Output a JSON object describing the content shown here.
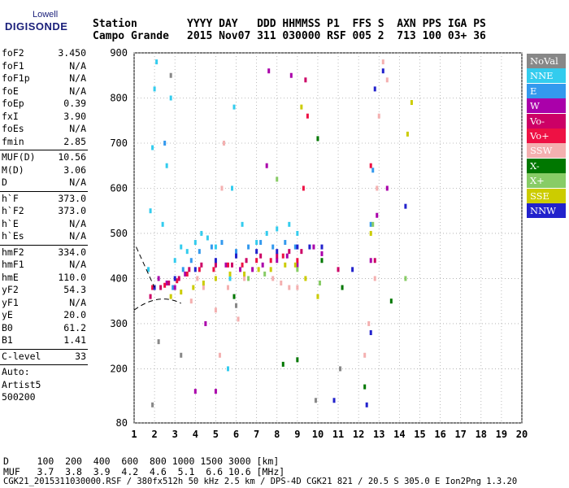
{
  "logo": {
    "line1": "Lowell",
    "line2": "DIGISONDE"
  },
  "header": {
    "station_label": "Station",
    "station_name": "Campo Grande",
    "columns_line": "YYYY DAY   DDD HHMMSS P1  FFS S  AXN PPS IGA PS",
    "values_line": "2015 Nov07 311 030000 RSF 005 2  713 100 03+ 36"
  },
  "params": [
    [
      {
        "k": "foF2",
        "v": "3.450"
      },
      {
        "k": "foF1",
        "v": "N/A"
      },
      {
        "k": "foF1p",
        "v": "N/A"
      },
      {
        "k": "foE",
        "v": "N/A"
      },
      {
        "k": "foEp",
        "v": "0.39"
      },
      {
        "k": "fxI",
        "v": "3.90"
      },
      {
        "k": "foEs",
        "v": "N/A"
      },
      {
        "k": "fmin",
        "v": "2.85"
      }
    ],
    [
      {
        "k": "MUF(D)",
        "v": "10.56"
      },
      {
        "k": "M(D)",
        "v": "3.06"
      },
      {
        "k": "D",
        "v": "N/A"
      }
    ],
    [
      {
        "k": "h`F",
        "v": "373.0"
      },
      {
        "k": "h`F2",
        "v": "373.0"
      },
      {
        "k": "h`E",
        "v": "N/A"
      },
      {
        "k": "h`Es",
        "v": "N/A"
      }
    ],
    [
      {
        "k": "hmF2",
        "v": "334.0"
      },
      {
        "k": "hmF1",
        "v": "N/A"
      },
      {
        "k": "hmE",
        "v": "110.0"
      },
      {
        "k": "yF2",
        "v": "54.3"
      },
      {
        "k": "yF1",
        "v": "N/A"
      },
      {
        "k": "yE",
        "v": "20.0"
      },
      {
        "k": "B0",
        "v": "61.2"
      },
      {
        "k": "B1",
        "v": "1.41"
      }
    ],
    [
      {
        "k": "C-level",
        "v": "33"
      }
    ]
  ],
  "autoscale": {
    "line1": "Auto:",
    "line2": "Artist5",
    "line3": "500200"
  },
  "legend": [
    {
      "label": "NoVal",
      "color": "#888888",
      "text": "#ffffff"
    },
    {
      "label": "NNE",
      "color": "#33ccee",
      "text": "#ffffff"
    },
    {
      "label": "E",
      "color": "#3399ee",
      "text": "#ffffff"
    },
    {
      "label": "W",
      "color": "#aa00aa",
      "text": "#ffffff"
    },
    {
      "label": "Vo-",
      "color": "#cc0066",
      "text": "#ffffff"
    },
    {
      "label": "Vo+",
      "color": "#ee1144",
      "text": "#ffffff"
    },
    {
      "label": "SSW",
      "color": "#f4b0b0",
      "text": "#ffffff"
    },
    {
      "label": "X-",
      "color": "#007700",
      "text": "#ffffff"
    },
    {
      "label": "X+",
      "color": "#88cc66",
      "text": "#ffffff"
    },
    {
      "label": "SSE",
      "color": "#cccc00",
      "text": "#ffffff"
    },
    {
      "label": "NNW",
      "color": "#2222cc",
      "text": "#ffffff"
    }
  ],
  "footer": {
    "d_line": "D     100  200  400  600  800 1000 1500 3000 [km]",
    "muf_line": "MUF   3.7  3.8  3.9  4.2  4.6  5.1  6.6 10.6 [MHz]",
    "file_line": "CGK21_2015311030000.RSF / 380fx512h 50 kHz 2.5 km / DPS-4D CGK21 821 / 20.5 S 305.0 E Ion2Png 1.3.20"
  },
  "chart_data": {
    "type": "scatter",
    "title": "",
    "xlabel": "",
    "ylabel": "",
    "xlim": [
      1,
      20
    ],
    "ylim": [
      80,
      900
    ],
    "xticks": [
      "1",
      "2",
      "3",
      "4",
      "5",
      "6",
      "7",
      "8",
      "9",
      "10",
      "11",
      "12",
      "13",
      "14",
      "15",
      "16",
      "17",
      "18",
      "19",
      "20"
    ],
    "yticks": [
      "80",
      "200",
      "300",
      "400",
      "500",
      "600",
      "700",
      "800",
      "900"
    ],
    "grid": true,
    "series": [
      {
        "name": "NoVal",
        "color": "#888888",
        "points": [
          [
            1.9,
            120
          ],
          [
            2.2,
            260
          ],
          [
            2.8,
            850
          ],
          [
            3.3,
            230
          ],
          [
            6.0,
            340
          ],
          [
            9.9,
            130
          ],
          [
            11.1,
            200
          ]
        ]
      },
      {
        "name": "NNE",
        "color": "#33ccee",
        "points": [
          [
            1.7,
            420
          ],
          [
            1.8,
            550
          ],
          [
            1.9,
            690
          ],
          [
            2.0,
            820
          ],
          [
            2.1,
            880
          ],
          [
            2.4,
            520
          ],
          [
            2.6,
            650
          ],
          [
            2.8,
            800
          ],
          [
            3.0,
            440
          ],
          [
            3.3,
            470
          ],
          [
            3.6,
            460
          ],
          [
            4.0,
            480
          ],
          [
            4.3,
            500
          ],
          [
            4.6,
            490
          ],
          [
            5.0,
            470
          ],
          [
            5.6,
            200
          ],
          [
            5.7,
            400
          ],
          [
            5.8,
            600
          ],
          [
            5.9,
            780
          ],
          [
            6.3,
            520
          ],
          [
            7.0,
            480
          ],
          [
            7.5,
            500
          ],
          [
            8.0,
            510
          ],
          [
            8.6,
            520
          ],
          [
            9.0,
            500
          ]
        ]
      },
      {
        "name": "E",
        "color": "#3399ee",
        "points": [
          [
            2.5,
            700
          ],
          [
            2.9,
            380
          ],
          [
            3.4,
            420
          ],
          [
            3.8,
            440
          ],
          [
            4.2,
            460
          ],
          [
            4.8,
            470
          ],
          [
            5.3,
            480
          ],
          [
            6.0,
            460
          ],
          [
            6.6,
            470
          ],
          [
            7.2,
            480
          ],
          [
            7.8,
            470
          ],
          [
            8.4,
            480
          ],
          [
            8.9,
            470
          ],
          [
            12.6,
            520
          ],
          [
            12.7,
            640
          ]
        ]
      },
      {
        "name": "W",
        "color": "#aa00aa",
        "points": [
          [
            2.2,
            400
          ],
          [
            2.6,
            390
          ],
          [
            3.0,
            380
          ],
          [
            3.5,
            410
          ],
          [
            4.0,
            150
          ],
          [
            4.5,
            300
          ],
          [
            5.0,
            150
          ],
          [
            5.5,
            430
          ],
          [
            6.2,
            420
          ],
          [
            6.8,
            420
          ],
          [
            7.3,
            430
          ],
          [
            7.5,
            650
          ],
          [
            7.6,
            860
          ],
          [
            8.0,
            440
          ],
          [
            8.5,
            450
          ],
          [
            8.7,
            850
          ],
          [
            9.0,
            430
          ],
          [
            9.8,
            470
          ],
          [
            10.2,
            455
          ],
          [
            12.6,
            440
          ],
          [
            12.9,
            540
          ],
          [
            13.4,
            600
          ]
        ]
      },
      {
        "name": "Vo-",
        "color": "#cc0066",
        "points": [
          [
            1.8,
            360
          ],
          [
            2.3,
            380
          ],
          [
            2.7,
            390
          ],
          [
            3.2,
            400
          ],
          [
            3.7,
            420
          ],
          [
            4.3,
            430
          ],
          [
            5.0,
            430
          ],
          [
            5.8,
            430
          ],
          [
            6.5,
            440
          ],
          [
            7.2,
            450
          ],
          [
            8.0,
            450
          ],
          [
            8.6,
            460
          ],
          [
            9.2,
            460
          ],
          [
            9.4,
            840
          ],
          [
            11.0,
            420
          ],
          [
            12.8,
            440
          ]
        ]
      },
      {
        "name": "Vo+",
        "color": "#ee1144",
        "points": [
          [
            1.9,
            380
          ],
          [
            2.5,
            385
          ],
          [
            3.1,
            395
          ],
          [
            3.6,
            410
          ],
          [
            4.2,
            420
          ],
          [
            4.9,
            420
          ],
          [
            5.6,
            430
          ],
          [
            6.3,
            430
          ],
          [
            7.0,
            440
          ],
          [
            7.7,
            440
          ],
          [
            8.3,
            450
          ],
          [
            9.0,
            440
          ],
          [
            9.3,
            600
          ],
          [
            9.5,
            760
          ],
          [
            12.6,
            650
          ]
        ]
      },
      {
        "name": "SSW",
        "color": "#f4b0b0",
        "points": [
          [
            3.8,
            350
          ],
          [
            4.1,
            400
          ],
          [
            4.4,
            380
          ],
          [
            5.0,
            330
          ],
          [
            5.2,
            230
          ],
          [
            5.3,
            600
          ],
          [
            5.4,
            700
          ],
          [
            5.6,
            380
          ],
          [
            6.1,
            310
          ],
          [
            6.4,
            400
          ],
          [
            7.8,
            400
          ],
          [
            8.2,
            390
          ],
          [
            8.6,
            380
          ],
          [
            9.0,
            380
          ],
          [
            12.3,
            230
          ],
          [
            12.5,
            300
          ],
          [
            12.8,
            400
          ],
          [
            12.9,
            600
          ],
          [
            13.0,
            760
          ],
          [
            13.2,
            880
          ],
          [
            13.4,
            840
          ]
        ]
      },
      {
        "name": "X-",
        "color": "#007700",
        "points": [
          [
            5.9,
            360
          ],
          [
            8.3,
            210
          ],
          [
            9.0,
            220
          ],
          [
            10.0,
            710
          ],
          [
            10.2,
            440
          ],
          [
            11.2,
            380
          ],
          [
            12.3,
            160
          ],
          [
            13.6,
            350
          ]
        ]
      },
      {
        "name": "X+",
        "color": "#88cc66",
        "points": [
          [
            6.6,
            400
          ],
          [
            7.4,
            410
          ],
          [
            8.0,
            620
          ],
          [
            9.0,
            420
          ],
          [
            10.1,
            390
          ],
          [
            12.7,
            520
          ],
          [
            14.3,
            400
          ]
        ]
      },
      {
        "name": "SSE",
        "color": "#cccc00",
        "points": [
          [
            2.8,
            360
          ],
          [
            3.3,
            370
          ],
          [
            3.9,
            380
          ],
          [
            4.4,
            390
          ],
          [
            5.0,
            400
          ],
          [
            5.7,
            410
          ],
          [
            6.4,
            410
          ],
          [
            7.1,
            420
          ],
          [
            7.7,
            420
          ],
          [
            8.4,
            430
          ],
          [
            8.9,
            430
          ],
          [
            9.2,
            780
          ],
          [
            9.4,
            400
          ],
          [
            10.0,
            360
          ],
          [
            12.6,
            500
          ],
          [
            14.4,
            720
          ],
          [
            14.6,
            790
          ]
        ]
      },
      {
        "name": "NNW",
        "color": "#2222cc",
        "points": [
          [
            2.0,
            380
          ],
          [
            3.0,
            400
          ],
          [
            4.0,
            420
          ],
          [
            5.0,
            440
          ],
          [
            6.0,
            450
          ],
          [
            7.0,
            460
          ],
          [
            8.0,
            460
          ],
          [
            9.0,
            470
          ],
          [
            9.6,
            470
          ],
          [
            10.2,
            470
          ],
          [
            10.8,
            130
          ],
          [
            11.7,
            420
          ],
          [
            12.4,
            120
          ],
          [
            12.6,
            280
          ],
          [
            12.8,
            820
          ],
          [
            13.2,
            860
          ],
          [
            14.3,
            560
          ]
        ]
      }
    ]
  }
}
